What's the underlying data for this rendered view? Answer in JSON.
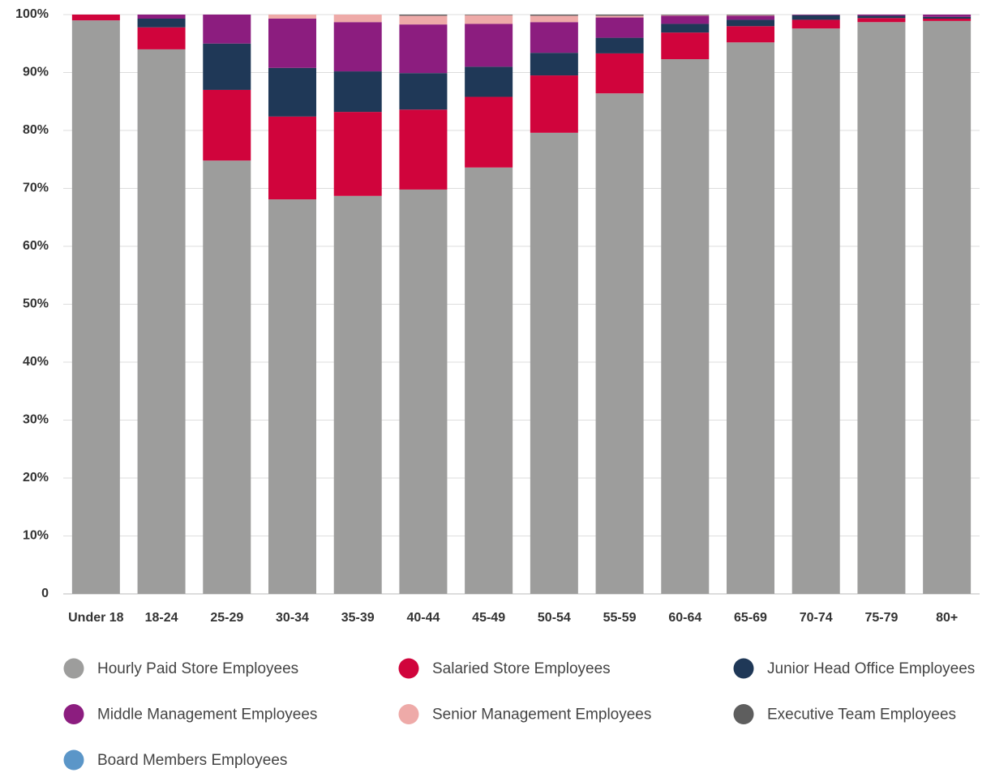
{
  "chart_data": {
    "type": "stacked_bar",
    "categories": [
      "Under 18",
      "18-24",
      "25-29",
      "30-34",
      "35-39",
      "40-44",
      "45-49",
      "50-54",
      "55-59",
      "60-64",
      "65-69",
      "70-74",
      "75-79",
      "80+"
    ],
    "series": [
      {
        "name": "Hourly Paid Store Employees",
        "color": "#9d9d9c",
        "values": [
          99.0,
          94.0,
          74.8,
          68.1,
          68.7,
          69.8,
          73.6,
          79.6,
          86.4,
          92.3,
          95.2,
          97.6,
          98.7,
          98.9
        ]
      },
      {
        "name": "Salaried Store Employees",
        "color": "#d0043c",
        "values": [
          1.0,
          3.8,
          12.2,
          14.3,
          14.5,
          13.8,
          12.2,
          9.9,
          6.9,
          4.6,
          2.8,
          1.5,
          0.7,
          0.4
        ]
      },
      {
        "name": "Junior Head Office Employees",
        "color": "#1f3857",
        "values": [
          0,
          1.5,
          8.0,
          8.4,
          7.0,
          6.3,
          5.2,
          3.9,
          2.7,
          1.5,
          1.1,
          0.8,
          0.4,
          0.3
        ]
      },
      {
        "name": "Middle Management Employees",
        "color": "#8c1d7f",
        "values": [
          0,
          0.7,
          5.0,
          8.5,
          8.5,
          8.4,
          7.4,
          5.3,
          3.5,
          1.4,
          0.7,
          0.1,
          0.2,
          0.4
        ]
      },
      {
        "name": "Senior Management Employees",
        "color": "#eeaaa8",
        "values": [
          0,
          0,
          0,
          0.7,
          1.3,
          1.5,
          1.5,
          1.1,
          0.3,
          0.1,
          0.1,
          0,
          0,
          0
        ]
      },
      {
        "name": "Executive Team Employees",
        "color": "#5e5e5e",
        "values": [
          0,
          0,
          0,
          0,
          0,
          0.2,
          0.1,
          0.2,
          0.2,
          0.1,
          0.1,
          0,
          0,
          0
        ]
      },
      {
        "name": "Board Members Employees",
        "color": "#5b96c8",
        "values": [
          0,
          0,
          0,
          0,
          0,
          0,
          0,
          0,
          0,
          0,
          0,
          0,
          0,
          0
        ]
      }
    ],
    "ylim": [
      0,
      100
    ],
    "yticks": [
      0,
      {
        "value": 10,
        "label": "10%"
      },
      {
        "value": 20,
        "label": "20%"
      },
      {
        "value": 30,
        "label": "30%"
      },
      {
        "value": 40,
        "label": "40%"
      },
      {
        "value": 50,
        "label": "50%"
      },
      {
        "value": 60,
        "label": "60%"
      },
      {
        "value": 70,
        "label": "70%"
      },
      {
        "value": 80,
        "label": "80%"
      },
      {
        "value": 90,
        "label": "90%"
      },
      {
        "value": 100,
        "label": "100%"
      }
    ],
    "grid": true
  }
}
